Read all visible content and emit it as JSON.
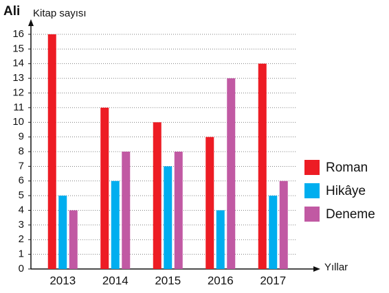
{
  "chart_data": {
    "type": "bar",
    "title": "Ali",
    "y_label": "Kitap sayısı",
    "x_label": "Yıllar",
    "categories": [
      "2013",
      "2014",
      "2015",
      "2016",
      "2017"
    ],
    "series": [
      {
        "name": "Roman",
        "color": "#ed1c24",
        "values": [
          16,
          11,
          10,
          9,
          14
        ]
      },
      {
        "name": "Hikâye",
        "color": "#00aeef",
        "values": [
          5,
          6,
          7,
          4,
          5
        ]
      },
      {
        "name": "Deneme",
        "color": "#c159a3",
        "values": [
          4,
          8,
          8,
          13,
          6
        ]
      }
    ],
    "ylim": [
      0,
      16
    ],
    "yticks": [
      0,
      1,
      2,
      3,
      4,
      5,
      6,
      7,
      8,
      9,
      10,
      11,
      12,
      13,
      14,
      15,
      16
    ],
    "grid": true,
    "legend": "right"
  }
}
